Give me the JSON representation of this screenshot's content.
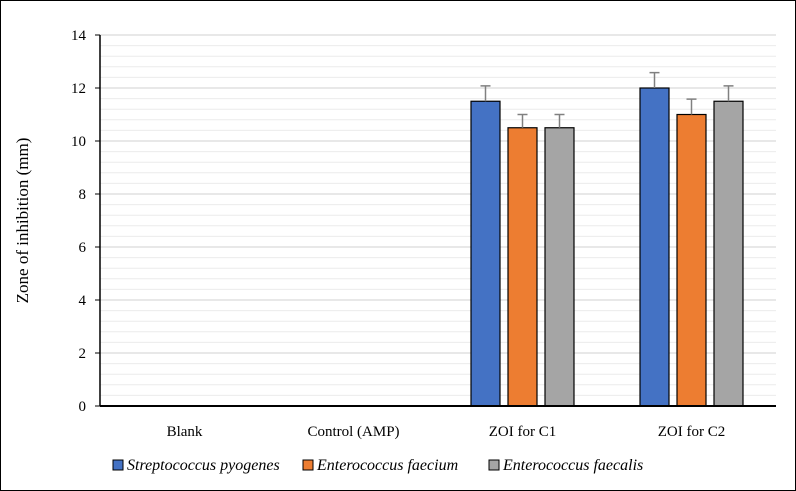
{
  "chart_data": {
    "type": "bar",
    "title": "",
    "xlabel": "",
    "ylabel": "Zone of inhibition (mm)",
    "ylim": [
      0,
      14
    ],
    "ytick_step": 2,
    "minor_step": 0.4,
    "grid": true,
    "legend_position": "bottom",
    "categories": [
      "Blank",
      "Control (AMP)",
      "ZOI for C1",
      "ZOI for C2"
    ],
    "series": [
      {
        "name": "Streptococcus pyogenes",
        "color": "#4472C4",
        "values": [
          0,
          0,
          11.5,
          12
        ],
        "errors": [
          0,
          0,
          0.58,
          0.58
        ]
      },
      {
        "name": "Enterococcus faecium",
        "color": "#ED7D31",
        "values": [
          0,
          0,
          10.5,
          11
        ],
        "errors": [
          0,
          0,
          0.5,
          0.58
        ]
      },
      {
        "name": "Enterococcus faecalis",
        "color": "#A5A5A5",
        "values": [
          0,
          0,
          10.5,
          11.5
        ],
        "errors": [
          0,
          0,
          0.5,
          0.58
        ]
      }
    ]
  }
}
